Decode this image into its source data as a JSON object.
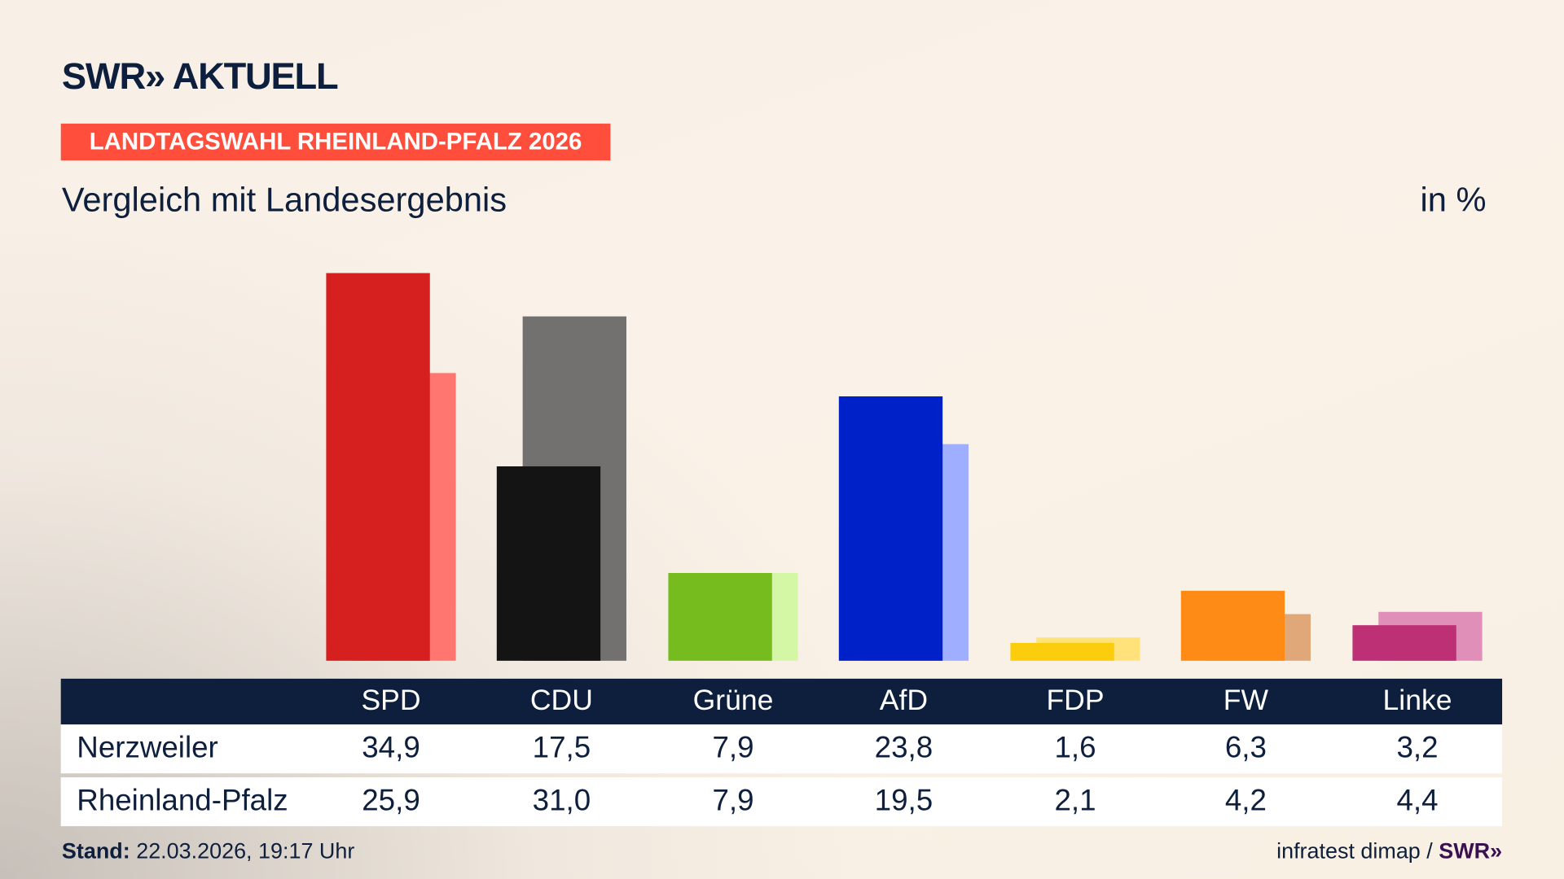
{
  "header": {
    "logo": "SWR» AKTUELL",
    "badge": "LANDTAGSWAHL RHEINLAND-PFALZ 2026",
    "subtitle": "Vergleich mit Landesergebnis",
    "unit": "in %"
  },
  "chart_data": {
    "type": "bar",
    "categories": [
      "SPD",
      "CDU",
      "Grüne",
      "AfD",
      "FDP",
      "FW",
      "Linke"
    ],
    "series": [
      {
        "name": "Nerzweiler",
        "values": [
          34.9,
          17.5,
          7.9,
          23.8,
          1.6,
          6.3,
          3.2
        ]
      },
      {
        "name": "Rheinland-Pfalz",
        "values": [
          25.9,
          31.0,
          7.9,
          19.5,
          2.1,
          4.2,
          4.4
        ]
      }
    ],
    "colors": {
      "primary": [
        "#d61f1f",
        "#141414",
        "#77bc1f",
        "#0020c8",
        "#fccd0d",
        "#ff8b17",
        "#be3075"
      ],
      "secondary": [
        "#ff7670",
        "#727170",
        "#d4f7a6",
        "#a0aeff",
        "#ffe37a",
        "#e0a878",
        "#e090b8"
      ]
    },
    "ylim": [
      0,
      35
    ],
    "grid": false
  },
  "table": {
    "headers": [
      "SPD",
      "CDU",
      "Grüne",
      "AfD",
      "FDP",
      "FW",
      "Linke"
    ],
    "rows": [
      {
        "label": "Nerzweiler",
        "values": [
          "34,9",
          "17,5",
          "7,9",
          "23,8",
          "1,6",
          "6,3",
          "3,2"
        ]
      },
      {
        "label": "Rheinland-Pfalz",
        "values": [
          "25,9",
          "31,0",
          "7,9",
          "19,5",
          "2,1",
          "4,2",
          "4,4"
        ]
      }
    ]
  },
  "footer": {
    "stand_label": "Stand:",
    "stand_value": " 22.03.2026, 19:17 Uhr",
    "source": "infratest dimap / ",
    "source_logo": "SWR»"
  }
}
